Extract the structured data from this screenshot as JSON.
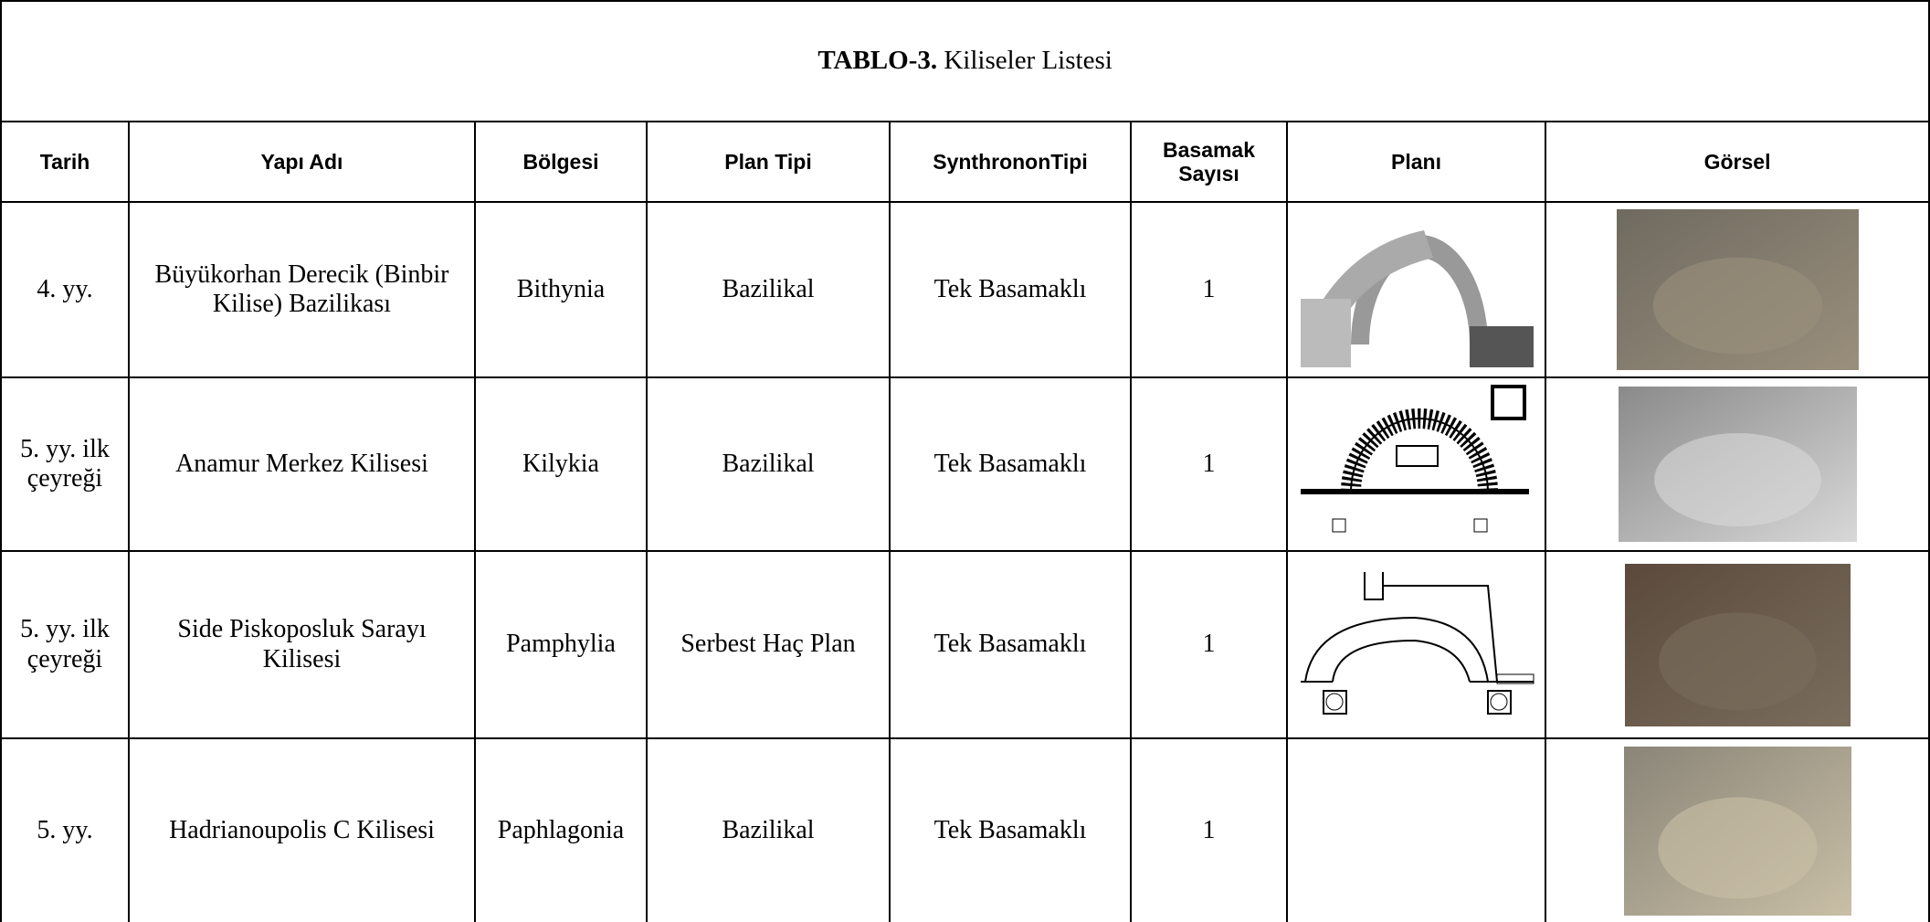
{
  "table": {
    "title": {
      "label": "TABLO-3.",
      "text": "Kiliseler Listesi"
    },
    "header": [
      "Tarih",
      "Yapı Adı",
      "Bölgesi",
      "Plan Tipi",
      "SynthrononTipi",
      "Basamak Sayısı",
      "Planı",
      "Görsel"
    ],
    "rows": [
      [
        "4. yy.",
        "Büyükorhan Derecik (Binbir Kilise) Bazilikası",
        "Bithynia",
        "Bazilikal",
        "Tek Basamaklı",
        1
      ],
      [
        "5. yy. ilk çeyreği",
        "Anamur Merkez Kilisesi",
        "Kilykia",
        "Bazilikal",
        "Tek Basamaklı",
        1
      ],
      [
        "5. yy. ilk çeyreği",
        "Side Piskoposluk Sarayı Kilisesi",
        "Pamphylia",
        "Serbest Haç Plan",
        "Tek Basamaklı",
        1
      ],
      [
        "5. yy.",
        "Hadrianoupolis C Kilisesi",
        "Paphlagonia",
        "Bazilikal",
        "Tek Basamaklı",
        1
      ]
    ]
  }
}
